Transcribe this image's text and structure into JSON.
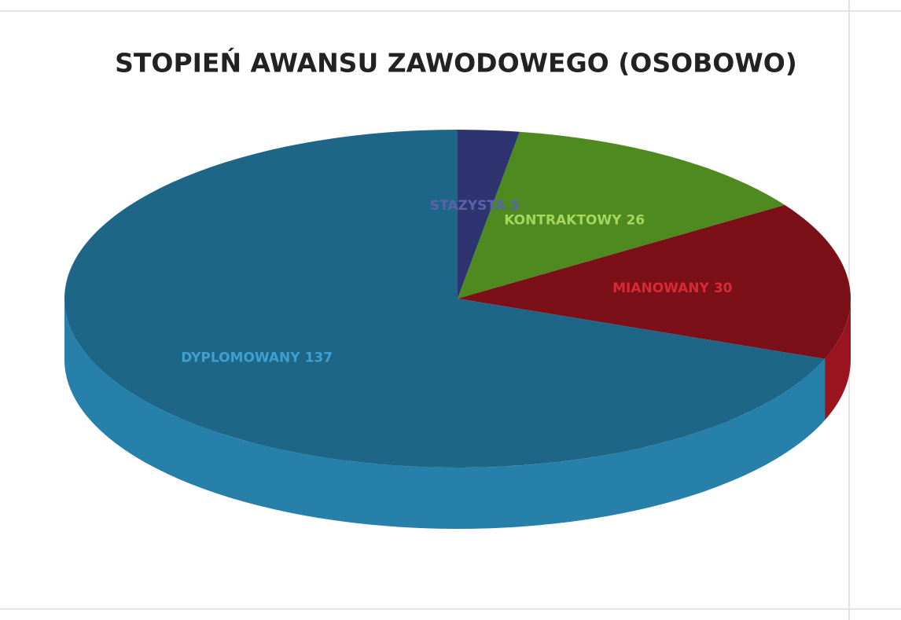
{
  "chart_data": {
    "type": "pie3d",
    "title": "STOPIEŃ AWANSU ZAWODOWEGO (OSOBOWO)",
    "categories": [
      "STAZYSTA",
      "KONTRAKTOWY",
      "MIANOWANY",
      "DYPLOMOWANY"
    ],
    "values": [
      5,
      26,
      30,
      137
    ],
    "colors": [
      "#2e3470",
      "#4e8a1f",
      "#7b1019",
      "#1e6688"
    ],
    "label_colors": [
      "#5a63a8",
      "#a6d65a",
      "#d92a33",
      "#3f9fd0"
    ]
  }
}
